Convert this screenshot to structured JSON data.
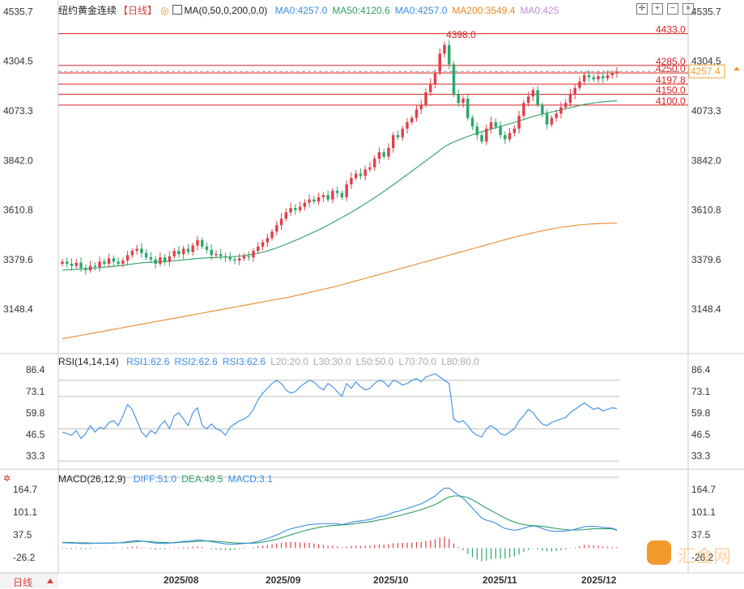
{
  "header": {
    "title": "纽约黄金连续",
    "period": "【日线】",
    "ma_label": "MA(0,50,0,200,0,0)",
    "ma_values": [
      {
        "text": "MA0:4257.0",
        "color": "#3a8ee6"
      },
      {
        "text": "MA50:4120.6",
        "color": "#2e9f62"
      },
      {
        "text": "MA0:4257.0",
        "color": "#3a8ee6"
      },
      {
        "text": "MA200:3549.4",
        "color": "#e8892b"
      },
      {
        "text": "MA0:425",
        "color": "#c68ad6"
      }
    ]
  },
  "rsi_header": {
    "label": "RSI(14,14,14)",
    "values": [
      {
        "text": "RSI1:62.6",
        "color": "#3a8ee6"
      },
      {
        "text": "RSI2:62.6",
        "color": "#3a8ee6"
      },
      {
        "text": "RSI3:62.6",
        "color": "#3a8ee6"
      },
      {
        "text": "L20:20.0",
        "color": "#aaaaaa"
      },
      {
        "text": "L30:30.0",
        "color": "#aaaaaa"
      },
      {
        "text": "L50:50.0",
        "color": "#aaaaaa"
      },
      {
        "text": "L70:70.0",
        "color": "#aaaaaa"
      },
      {
        "text": "L80:80.0",
        "color": "#aaaaaa"
      }
    ]
  },
  "macd_header": {
    "label": "MACD(26,12,9)",
    "values": [
      {
        "text": "DIFF:51.0",
        "color": "#3a8ee6"
      },
      {
        "text": "DEA:49.5",
        "color": "#2e9f62"
      },
      {
        "text": "MACD:3.1",
        "color": "#3a8ee6"
      }
    ]
  },
  "bottom_tab": "日线",
  "watermark": "汇金网",
  "colors": {
    "up": "#e0404a",
    "down": "#28a86a",
    "ma50": "#2e9f62",
    "ma200": "#e8892b",
    "rsi": "#3a8ee6",
    "level": "#d92020",
    "last": "#f0a030"
  },
  "chart_data": [
    {
      "type": "candlestick",
      "y_ticks": [
        4535.7,
        4304.5,
        4073.3,
        3842.0,
        3610.8,
        3379.6,
        3148.4
      ],
      "ylim": [
        2960,
        4560
      ],
      "x_ticks": [
        "2025/08",
        "2025/09",
        "2025/10",
        "2025/11",
        "2025/12"
      ],
      "levels": [
        {
          "value": 4433.0,
          "label": "4433.0"
        },
        {
          "value": 4285.0,
          "label": "4285.0"
        },
        {
          "value": 4250.0,
          "label": "4250.0"
        },
        {
          "value": 4197.8,
          "label": "4197.8"
        },
        {
          "value": 4150.0,
          "label": "4150.0"
        },
        {
          "value": 4100.0,
          "label": "4100.0"
        }
      ],
      "peak_label": "4398.0",
      "last_price": "4257.4",
      "closes": [
        3370,
        3360,
        3350,
        3365,
        3340,
        3330,
        3350,
        3345,
        3370,
        3360,
        3385,
        3370,
        3360,
        3375,
        3400,
        3420,
        3430,
        3410,
        3390,
        3380,
        3360,
        3390,
        3370,
        3395,
        3420,
        3405,
        3430,
        3415,
        3445,
        3470,
        3440,
        3425,
        3400,
        3405,
        3395,
        3390,
        3380,
        3375,
        3385,
        3395,
        3390,
        3420,
        3440,
        3460,
        3480,
        3510,
        3540,
        3570,
        3600,
        3620,
        3610,
        3625,
        3645,
        3660,
        3650,
        3670,
        3680,
        3660,
        3700,
        3690,
        3670,
        3730,
        3760,
        3780,
        3770,
        3800,
        3810,
        3850,
        3880,
        3860,
        3900,
        3960,
        3950,
        3990,
        4020,
        4040,
        4080,
        4100,
        4160,
        4200,
        4250,
        4340,
        4380,
        4290,
        4150,
        4110,
        4130,
        4040,
        4000,
        3960,
        3930,
        3990,
        4020,
        4000,
        3960,
        3940,
        3970,
        3990,
        4050,
        4110,
        4140,
        4170,
        4100,
        4060,
        4010,
        4040,
        4060,
        4090,
        4110,
        4150,
        4180,
        4210,
        4240,
        4230,
        4220,
        4235,
        4225,
        4240,
        4250,
        4257.4
      ],
      "ma50": [
        3330,
        3332,
        3333,
        3334,
        3335,
        3337,
        3338,
        3340,
        3342,
        3344,
        3346,
        3348,
        3350,
        3353,
        3356,
        3359,
        3362,
        3364,
        3366,
        3367,
        3368,
        3369,
        3370,
        3372,
        3374,
        3376,
        3378,
        3380,
        3382,
        3384,
        3386,
        3387,
        3388,
        3389,
        3390,
        3391,
        3392,
        3394,
        3396,
        3398,
        3401,
        3405,
        3409,
        3414,
        3420,
        3427,
        3434,
        3442,
        3451,
        3460,
        3469,
        3478,
        3488,
        3498,
        3508,
        3518,
        3529,
        3540,
        3552,
        3564,
        3576,
        3588,
        3600,
        3613,
        3626,
        3640,
        3654,
        3668,
        3683,
        3698,
        3713,
        3728,
        3744,
        3760,
        3776,
        3792,
        3808,
        3824,
        3840,
        3856,
        3872,
        3890,
        3906,
        3918,
        3928,
        3937,
        3946,
        3954,
        3962,
        3969,
        3976,
        3982,
        3989,
        3995,
        4001,
        4007,
        4013,
        4019,
        4026,
        4033,
        4040,
        4047,
        4053,
        4058,
        4063,
        4068,
        4073,
        4078,
        4083,
        4088,
        4093,
        4098,
        4103,
        4107,
        4110,
        4113,
        4115,
        4117,
        4119,
        4120.6
      ],
      "ma200": [
        3010,
        3014,
        3018,
        3022,
        3026,
        3030,
        3034,
        3038,
        3042,
        3046,
        3050,
        3054,
        3058,
        3062,
        3066,
        3070,
        3074,
        3078,
        3082,
        3086,
        3090,
        3094,
        3098,
        3102,
        3106,
        3110,
        3114,
        3118,
        3122,
        3126,
        3130,
        3134,
        3138,
        3142,
        3146,
        3150,
        3154,
        3158,
        3162,
        3166,
        3170,
        3174,
        3178,
        3182,
        3186,
        3190,
        3194,
        3198,
        3202,
        3206,
        3211,
        3216,
        3221,
        3226,
        3231,
        3236,
        3241,
        3246,
        3251,
        3256,
        3262,
        3268,
        3274,
        3280,
        3286,
        3292,
        3298,
        3304,
        3310,
        3316,
        3322,
        3328,
        3334,
        3340,
        3346,
        3352,
        3358,
        3364,
        3370,
        3376,
        3382,
        3388,
        3394,
        3400,
        3406,
        3412,
        3418,
        3424,
        3430,
        3436,
        3442,
        3448,
        3454,
        3460,
        3466,
        3472,
        3478,
        3484,
        3489,
        3494,
        3499,
        3504,
        3509,
        3514,
        3518,
        3522,
        3526,
        3530,
        3533,
        3536,
        3539,
        3541,
        3543,
        3545,
        3546,
        3547,
        3548,
        3548.7,
        3549,
        3549.4
      ]
    },
    {
      "type": "line",
      "name": "RSI",
      "y_ticks": [
        86.4,
        73.1,
        59.8,
        46.5,
        33.3
      ],
      "ylim": [
        26,
        90
      ],
      "values": [
        48,
        47,
        46,
        49,
        44,
        47,
        52,
        48,
        51,
        50,
        54,
        55,
        52,
        58,
        65,
        62,
        55,
        48,
        45,
        49,
        47,
        52,
        55,
        50,
        58,
        60,
        56,
        52,
        60,
        63,
        52,
        50,
        53,
        50,
        49,
        46,
        51,
        53,
        55,
        56,
        58,
        62,
        68,
        72,
        75,
        78,
        80,
        78,
        74,
        72,
        73,
        76,
        78,
        80,
        79,
        76,
        74,
        78,
        76,
        73,
        70,
        78,
        75,
        79,
        76,
        74,
        75,
        78,
        80,
        79,
        76,
        80,
        79,
        77,
        78,
        80,
        81,
        79,
        82,
        83,
        84,
        82,
        80,
        78,
        56,
        54,
        55,
        52,
        48,
        46,
        45,
        50,
        52,
        50,
        47,
        46,
        48,
        50,
        55,
        58,
        62,
        60,
        56,
        53,
        52,
        54,
        55,
        56,
        57,
        60,
        62,
        64,
        66,
        64,
        62,
        63,
        61,
        62,
        63,
        62.6
      ]
    },
    {
      "type": "bar+line",
      "name": "MACD",
      "y_ticks": [
        164.7,
        101.1,
        37.5,
        -26.2
      ],
      "ylim": [
        -60,
        180
      ],
      "diff": [
        15,
        15,
        14,
        14,
        13,
        13,
        13,
        14,
        14,
        14,
        15,
        15,
        15,
        16,
        18,
        20,
        21,
        20,
        18,
        16,
        14,
        14,
        13,
        14,
        16,
        17,
        19,
        19,
        21,
        23,
        22,
        20,
        18,
        16,
        14,
        12,
        11,
        11,
        12,
        13,
        14,
        16,
        19,
        23,
        27,
        32,
        37,
        43,
        49,
        54,
        57,
        60,
        63,
        66,
        67,
        68,
        69,
        68,
        69,
        68,
        66,
        69,
        72,
        75,
        76,
        78,
        80,
        84,
        88,
        90,
        94,
        100,
        103,
        107,
        111,
        115,
        120,
        124,
        131,
        138,
        146,
        158,
        168,
        168,
        158,
        148,
        140,
        126,
        112,
        98,
        84,
        78,
        75,
        70,
        62,
        55,
        52,
        50,
        52,
        56,
        60,
        62,
        60,
        55,
        50,
        48,
        47,
        47,
        48,
        50,
        53,
        56,
        60,
        61,
        61,
        60,
        58,
        57,
        56,
        51.0
      ],
      "dea": [
        16,
        16,
        16,
        15,
        15,
        15,
        14,
        14,
        14,
        14,
        14,
        14,
        15,
        15,
        16,
        17,
        18,
        19,
        19,
        18,
        17,
        16,
        16,
        15,
        15,
        16,
        17,
        17,
        18,
        19,
        20,
        20,
        20,
        19,
        18,
        17,
        16,
        15,
        14,
        14,
        14,
        14,
        15,
        17,
        19,
        22,
        25,
        29,
        33,
        37,
        41,
        45,
        49,
        52,
        55,
        58,
        60,
        62,
        63,
        64,
        65,
        66,
        67,
        69,
        71,
        72,
        74,
        76,
        79,
        81,
        84,
        87,
        90,
        93,
        97,
        100,
        104,
        108,
        112,
        117,
        122,
        129,
        137,
        143,
        146,
        146,
        145,
        141,
        135,
        128,
        120,
        112,
        105,
        98,
        91,
        84,
        78,
        73,
        69,
        66,
        64,
        63,
        62,
        61,
        59,
        57,
        55,
        53,
        52,
        51,
        51,
        51,
        52,
        53,
        54,
        54,
        54,
        54,
        54,
        49.5
      ],
      "hist": [
        -2,
        -2,
        -3,
        -2,
        -3,
        -3,
        -2,
        -1,
        -1,
        -1,
        0,
        1,
        0,
        1,
        3,
        4,
        4,
        2,
        -1,
        -3,
        -4,
        -3,
        -3,
        -2,
        1,
        2,
        3,
        3,
        4,
        5,
        3,
        0,
        -3,
        -4,
        -5,
        -6,
        -6,
        -5,
        -3,
        -2,
        0,
        2,
        5,
        7,
        9,
        11,
        13,
        15,
        17,
        18,
        17,
        16,
        15,
        15,
        13,
        11,
        9,
        7,
        7,
        5,
        2,
        4,
        6,
        7,
        6,
        7,
        7,
        9,
        10,
        10,
        11,
        14,
        14,
        15,
        15,
        16,
        17,
        17,
        20,
        22,
        25,
        30,
        32,
        26,
        13,
        3,
        -6,
        -16,
        -25,
        -32,
        -37,
        -35,
        -31,
        -29,
        -30,
        -30,
        -27,
        -24,
        -18,
        -11,
        -5,
        -1,
        -3,
        -7,
        -9,
        -9,
        -8,
        -6,
        -4,
        -1,
        2,
        5,
        9,
        9,
        8,
        7,
        5,
        4,
        3,
        3.1
      ]
    }
  ]
}
